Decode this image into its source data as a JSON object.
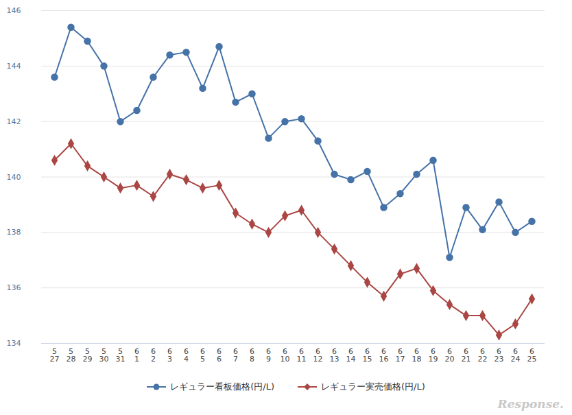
{
  "chart_data": {
    "type": "line",
    "categories": [
      "5\n27",
      "5\n28",
      "5\n29",
      "5\n30",
      "5\n31",
      "6\n1",
      "6\n2",
      "6\n3",
      "6\n4",
      "6\n5",
      "6\n6",
      "6\n7",
      "6\n8",
      "6\n9",
      "6\n10",
      "6\n11",
      "6\n12",
      "6\n13",
      "6\n14",
      "6\n15",
      "6\n16",
      "6\n17",
      "6\n18",
      "6\n19",
      "6\n20",
      "6\n21",
      "6\n22",
      "6\n23",
      "6\n24",
      "6\n25"
    ],
    "series": [
      {
        "name": "レギュラー看板価格(円/L)",
        "color": "#4572a7",
        "marker": "circle",
        "values": [
          143.6,
          145.4,
          144.9,
          144.0,
          142.0,
          142.4,
          143.6,
          144.4,
          144.5,
          143.2,
          144.7,
          142.7,
          143.0,
          141.4,
          142.0,
          142.1,
          141.3,
          140.1,
          139.9,
          140.2,
          138.9,
          139.4,
          140.1,
          140.6,
          137.1,
          138.9,
          138.1,
          139.1,
          138.0,
          138.4
        ]
      },
      {
        "name": "レギュラー実売価格(円/L)",
        "color": "#aa4643",
        "marker": "diamond",
        "values": [
          140.6,
          141.2,
          140.4,
          140.0,
          139.6,
          139.7,
          139.3,
          140.1,
          139.9,
          139.6,
          139.7,
          138.7,
          138.3,
          138.0,
          138.6,
          138.8,
          138.0,
          137.4,
          136.8,
          136.2,
          135.7,
          136.5,
          136.7,
          135.9,
          135.4,
          135.0,
          135.0,
          134.3,
          134.7,
          135.6
        ]
      }
    ],
    "ylim": [
      134,
      146
    ],
    "yticks": [
      134,
      136,
      138,
      140,
      142,
      144,
      146
    ],
    "grid": true,
    "legend": "bottom",
    "annotations": [
      "Response."
    ]
  }
}
